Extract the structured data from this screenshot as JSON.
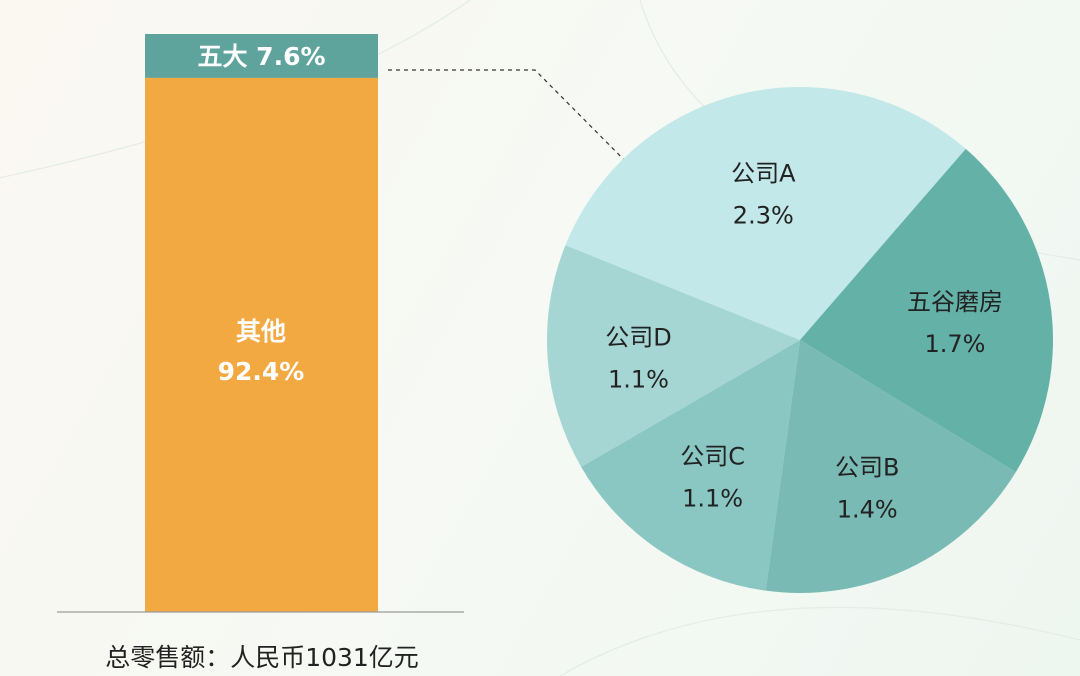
{
  "chart_data": [
    {
      "type": "bar",
      "stacked": true,
      "segments": [
        {
          "name": "五大",
          "value": 7.6,
          "label": "7.6%",
          "color": "#5fa39d"
        },
        {
          "name": "其他",
          "value": 92.4,
          "label": "92.4%",
          "color": "#f3a942"
        }
      ],
      "footnote": "总零售额：人民币1031亿元"
    },
    {
      "type": "pie",
      "slices": [
        {
          "name": "公司A",
          "value": 2.3,
          "label": "2.3%",
          "color": "#c2e8ea"
        },
        {
          "name": "五谷磨房",
          "value": 1.7,
          "label": "1.7%",
          "color": "#64b1a8"
        },
        {
          "name": "公司B",
          "value": 1.4,
          "label": "1.4%",
          "color": "#79bab4"
        },
        {
          "name": "公司C",
          "value": 1.1,
          "label": "1.1%",
          "color": "#8ac6c2"
        },
        {
          "name": "公司D",
          "value": 1.1,
          "label": "1.1%",
          "color": "#a5d6d4"
        }
      ]
    }
  ]
}
